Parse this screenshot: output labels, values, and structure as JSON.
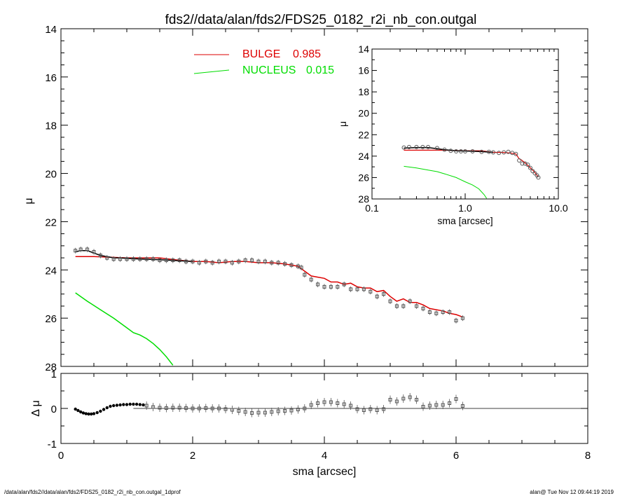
{
  "title": "fds2//data/alan/fds2/FDS25_0182_r2i_nb_con.outgal",
  "footer_left": "/data/alan/fds2//data/alan/fds2/FDS25_0182_r2i_nb_con.outgal_1dprof",
  "footer_right": "alan@  Tue Nov 12 09:44:19 2019",
  "colors": {
    "data": "#555555",
    "bulge": "#dd0000",
    "nucleus": "#00dd00",
    "total": "#000000"
  },
  "chart_data": [
    {
      "type": "scatter",
      "id": "main",
      "xlabel": "sma [arcsec]",
      "ylabel": "μ",
      "xlim": [
        0,
        8
      ],
      "ylim": [
        28,
        14
      ],
      "xticks": [
        "0",
        "2",
        "4",
        "6",
        "8"
      ],
      "yticks": [
        "14",
        "16",
        "18",
        "20",
        "22",
        "24",
        "26",
        "28"
      ],
      "legend_position": "top-center",
      "legend": [
        {
          "label": "BULGE",
          "value": "0.985",
          "color": "#dd0000"
        },
        {
          "label": "NUCLEUS",
          "value": "0.015",
          "color": "#00dd00"
        }
      ],
      "data_x": [
        0.22,
        0.3,
        0.4,
        0.5,
        0.6,
        0.7,
        0.8,
        0.9,
        1.0,
        1.1,
        1.2,
        1.3,
        1.4,
        1.5,
        1.6,
        1.7,
        1.8,
        1.9,
        2.0,
        2.1,
        2.2,
        2.3,
        2.4,
        2.5,
        2.6,
        2.7,
        2.8,
        2.9,
        3.0,
        3.1,
        3.2,
        3.3,
        3.4,
        3.5,
        3.6,
        3.65,
        3.7,
        3.8,
        3.9,
        4.0,
        4.1,
        4.2,
        4.3,
        4.4,
        4.5,
        4.6,
        4.7,
        4.8,
        4.9,
        5.0,
        5.1,
        5.2,
        5.3,
        5.4,
        5.5,
        5.6,
        5.7,
        5.8,
        5.9,
        6.0,
        6.1
      ],
      "data_y": [
        23.2,
        23.15,
        23.15,
        23.25,
        23.4,
        23.5,
        23.55,
        23.55,
        23.55,
        23.55,
        23.55,
        23.55,
        23.55,
        23.6,
        23.6,
        23.6,
        23.6,
        23.65,
        23.65,
        23.7,
        23.65,
        23.7,
        23.65,
        23.65,
        23.7,
        23.65,
        23.6,
        23.6,
        23.65,
        23.65,
        23.7,
        23.7,
        23.75,
        23.8,
        23.85,
        23.9,
        24.2,
        24.4,
        24.6,
        24.7,
        24.7,
        24.7,
        24.6,
        24.8,
        24.8,
        24.8,
        24.9,
        25.1,
        25.0,
        25.3,
        25.5,
        25.5,
        25.3,
        25.5,
        25.6,
        25.75,
        25.8,
        25.75,
        25.75,
        26.1,
        26.0
      ],
      "bulge_x": [
        0.22,
        0.5,
        1.0,
        1.5,
        1.8,
        2.0,
        2.2,
        2.4,
        2.6,
        2.8,
        3.0,
        3.2,
        3.4,
        3.5,
        3.6,
        3.7,
        3.8,
        3.9,
        4.0,
        4.1,
        4.2,
        4.3,
        4.4,
        4.5,
        4.6,
        4.7,
        4.8,
        4.9,
        5.0,
        5.1,
        5.2,
        5.3,
        5.4,
        5.5,
        5.6,
        5.7,
        5.8,
        5.9,
        6.0,
        6.1
      ],
      "bulge_y": [
        23.45,
        23.45,
        23.5,
        23.5,
        23.6,
        23.65,
        23.65,
        23.7,
        23.65,
        23.65,
        23.7,
        23.7,
        23.75,
        23.8,
        23.85,
        24.05,
        24.25,
        24.3,
        24.35,
        24.5,
        24.5,
        24.6,
        24.55,
        24.7,
        24.75,
        24.75,
        24.9,
        24.85,
        25.1,
        25.3,
        25.2,
        25.35,
        25.35,
        25.45,
        25.6,
        25.65,
        25.7,
        25.8,
        25.85,
        25.95
      ],
      "total_x": [
        0.22,
        0.3,
        0.4,
        0.5,
        0.6,
        0.7,
        0.8,
        0.9,
        1.0,
        1.2,
        1.5,
        2.0
      ],
      "total_y": [
        23.25,
        23.2,
        23.2,
        23.3,
        23.4,
        23.45,
        23.5,
        23.5,
        23.52,
        23.55,
        23.58,
        23.65
      ],
      "nucleus_x": [
        0.22,
        0.4,
        0.6,
        0.8,
        1.0,
        1.1,
        1.2,
        1.3,
        1.4,
        1.5,
        1.6,
        1.7
      ],
      "nucleus_y": [
        24.95,
        25.3,
        25.65,
        26.0,
        26.4,
        26.6,
        26.7,
        26.85,
        27.05,
        27.3,
        27.6,
        27.95
      ]
    },
    {
      "type": "scatter",
      "id": "residual",
      "xlabel": "sma [arcsec]",
      "ylabel": "Δ μ",
      "xlim": [
        0,
        8
      ],
      "ylim": [
        -1,
        1
      ],
      "yticks": [
        "-1",
        "0",
        "1"
      ],
      "x": [
        0.22,
        0.26,
        0.3,
        0.34,
        0.38,
        0.42,
        0.46,
        0.5,
        0.55,
        0.6,
        0.65,
        0.7,
        0.75,
        0.8,
        0.85,
        0.9,
        0.95,
        1.0,
        1.05,
        1.1,
        1.15,
        1.2,
        1.25,
        1.3,
        1.4,
        1.5,
        1.6,
        1.7,
        1.8,
        1.9,
        2.0,
        2.1,
        2.2,
        2.3,
        2.4,
        2.5,
        2.6,
        2.7,
        2.8,
        2.9,
        3.0,
        3.1,
        3.2,
        3.3,
        3.4,
        3.5,
        3.6,
        3.7,
        3.8,
        3.9,
        4.0,
        4.1,
        4.2,
        4.3,
        4.4,
        4.5,
        4.6,
        4.7,
        4.8,
        4.9,
        5.0,
        5.1,
        5.2,
        5.3,
        5.4,
        5.5,
        5.6,
        5.7,
        5.8,
        5.9,
        6.0,
        6.1
      ],
      "y": [
        -0.02,
        -0.06,
        -0.1,
        -0.13,
        -0.15,
        -0.16,
        -0.16,
        -0.15,
        -0.12,
        -0.08,
        -0.03,
        0.02,
        0.06,
        0.08,
        0.09,
        0.1,
        0.11,
        0.11,
        0.12,
        0.12,
        0.12,
        0.11,
        0.1,
        0.08,
        0.04,
        0.02,
        0.01,
        0.02,
        0.02,
        0.01,
        0.0,
        0.0,
        0.01,
        0.0,
        0.0,
        -0.02,
        -0.04,
        -0.07,
        -0.1,
        -0.13,
        -0.12,
        -0.12,
        -0.1,
        -0.08,
        -0.07,
        -0.06,
        -0.03,
        0.0,
        0.1,
        0.15,
        0.18,
        0.18,
        0.15,
        0.12,
        0.08,
        -0.02,
        -0.05,
        -0.02,
        -0.05,
        -0.02,
        0.25,
        0.2,
        0.28,
        0.32,
        0.25,
        0.05,
        0.08,
        0.1,
        0.1,
        0.15,
        0.27,
        0.07
      ]
    },
    {
      "type": "scatter",
      "id": "inset",
      "xlabel": "sma [arcsec]",
      "ylabel": "μ",
      "xscale": "log",
      "xlim": [
        0.1,
        10.0
      ],
      "ylim": [
        28,
        14
      ],
      "xticks": [
        "0.1",
        "1.0",
        "10.0"
      ],
      "yticks": [
        "14",
        "16",
        "18",
        "20",
        "22",
        "24",
        "26",
        "28"
      ],
      "data_x": [
        0.22,
        0.25,
        0.3,
        0.35,
        0.4,
        0.5,
        0.6,
        0.7,
        0.8,
        0.9,
        1.0,
        1.2,
        1.5,
        1.8,
        2.0,
        2.3,
        2.6,
        2.9,
        3.2,
        3.5,
        3.8,
        4.1,
        4.4,
        4.7,
        5.0,
        5.3,
        5.6,
        5.9,
        6.1
      ],
      "data_y": [
        23.2,
        23.15,
        23.15,
        23.15,
        23.15,
        23.25,
        23.4,
        23.5,
        23.55,
        23.55,
        23.55,
        23.55,
        23.6,
        23.6,
        23.65,
        23.7,
        23.65,
        23.6,
        23.7,
        23.8,
        24.4,
        24.7,
        24.7,
        24.8,
        25.1,
        25.4,
        25.6,
        25.8,
        26.0
      ],
      "bulge_x": [
        0.22,
        0.4,
        0.6,
        1.0,
        1.5,
        2.0,
        2.5,
        3.0,
        3.5,
        3.8,
        4.0,
        4.5,
        5.0,
        5.5,
        6.1
      ],
      "bulge_y": [
        23.45,
        23.45,
        23.45,
        23.5,
        23.5,
        23.65,
        23.65,
        23.7,
        23.8,
        24.25,
        24.35,
        24.7,
        25.1,
        25.45,
        25.95
      ],
      "total_x": [
        0.22,
        0.3,
        0.4,
        0.5,
        0.6,
        0.8,
        1.0,
        1.5,
        2.0
      ],
      "total_y": [
        23.25,
        23.2,
        23.2,
        23.3,
        23.4,
        23.5,
        23.52,
        23.58,
        23.65
      ],
      "nucleus_x": [
        0.22,
        0.3,
        0.4,
        0.5,
        0.6,
        0.8,
        1.0,
        1.2,
        1.4,
        1.6,
        1.7
      ],
      "nucleus_y": [
        24.95,
        25.1,
        25.3,
        25.45,
        25.65,
        26.0,
        26.4,
        26.7,
        27.05,
        27.6,
        27.95
      ]
    }
  ]
}
